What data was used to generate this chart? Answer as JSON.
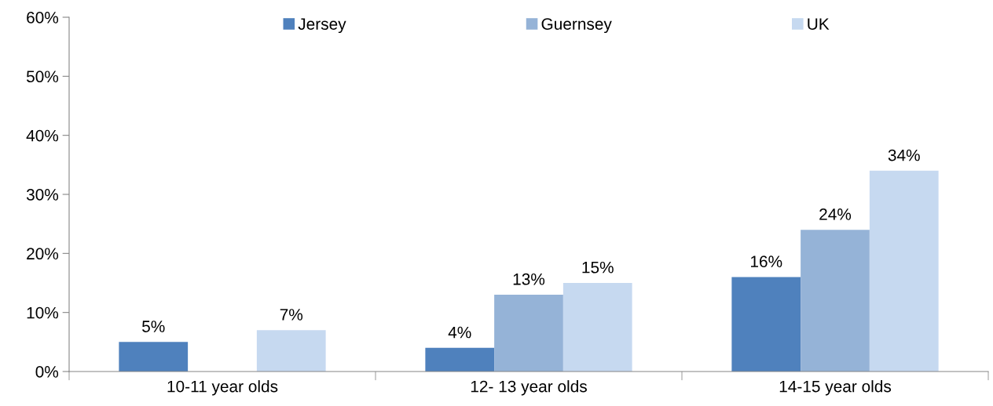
{
  "chart_data": {
    "type": "bar",
    "categories": [
      "10-11 year olds",
      "12- 13 year olds",
      "14-15 year olds"
    ],
    "series": [
      {
        "name": "Jersey",
        "color": "#4f81bd",
        "values": [
          5,
          4,
          16
        ],
        "value_labels": [
          "5%",
          "4%",
          "16%"
        ]
      },
      {
        "name": "Guernsey",
        "color": "#95b3d7",
        "values": [
          null,
          13,
          24
        ],
        "value_labels": [
          null,
          "13%",
          "24%"
        ]
      },
      {
        "name": "UK",
        "color": "#c6d9f0",
        "values": [
          7,
          15,
          34
        ],
        "value_labels": [
          "7%",
          "15%",
          "34%"
        ]
      }
    ],
    "ylim": [
      0,
      60
    ],
    "yticks": [
      {
        "value": 0,
        "label": "0%"
      },
      {
        "value": 10,
        "label": "10%"
      },
      {
        "value": 20,
        "label": "20%"
      },
      {
        "value": 30,
        "label": "30%"
      },
      {
        "value": 40,
        "label": "40%"
      },
      {
        "value": 50,
        "label": "50%"
      },
      {
        "value": 60,
        "label": "60%"
      }
    ],
    "legend": "top",
    "grid": false
  }
}
